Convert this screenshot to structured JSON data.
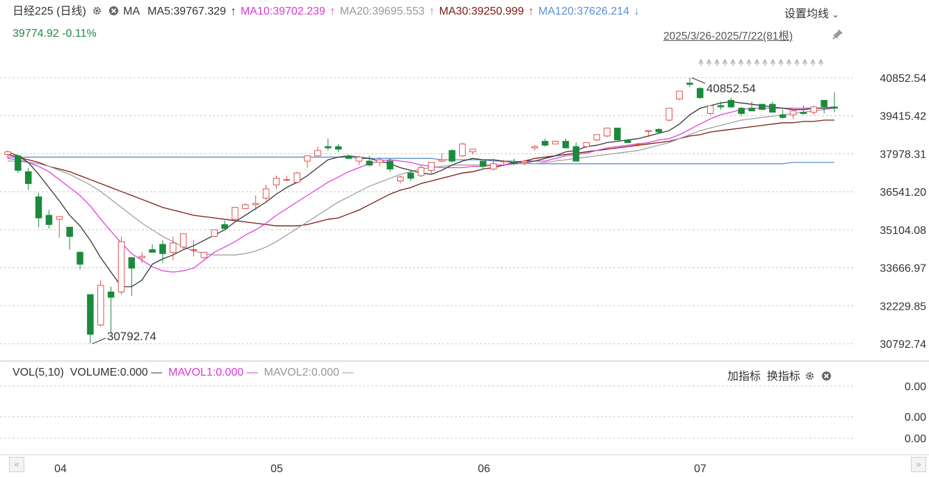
{
  "header": {
    "title": "日经225 (日线)",
    "ma_label": "MA",
    "ma5": "MA5:39767.329",
    "ma10": "MA10:39702.239",
    "ma20": "MA20:39695.553",
    "ma30": "MA30:39250.999",
    "ma120": "MA120:37626.214",
    "arrow_up": "↑",
    "arrow_down": "↓",
    "price_change": "39774.92 -0.11%",
    "settings_label": "设置均线",
    "date_range": "2025/3/26-2025/7/22(81根)"
  },
  "colors": {
    "up": "#e0504a",
    "down": "#1a8a3c",
    "ma5": "#333333",
    "ma10": "#e040e0",
    "ma20": "#a0a0a0",
    "ma30": "#7a1a12",
    "ma120": "#5b8fd6"
  },
  "chart_data": {
    "type": "candlestick",
    "y_ticks": [
      "40852.54",
      "39415.42",
      "37978.31",
      "36541.20",
      "35104.08",
      "33666.97",
      "32229.85",
      "30792.74"
    ],
    "ylim": [
      30792.74,
      40852.54
    ],
    "x_ticks": [
      "04",
      "05",
      "06",
      "07"
    ],
    "annotations": {
      "high": "40852.54",
      "low": "30792.74"
    },
    "candles": [
      [
        37950,
        38100,
        37800,
        38050
      ],
      [
        37900,
        37950,
        37250,
        37350
      ],
      [
        37300,
        37450,
        36600,
        36850
      ],
      [
        36350,
        36500,
        35200,
        35550
      ],
      [
        35650,
        35850,
        35150,
        35300
      ],
      [
        35500,
        35600,
        34800,
        35600
      ],
      [
        35200,
        35200,
        34350,
        34850
      ],
      [
        34250,
        34300,
        33600,
        33800
      ],
      [
        32650,
        32650,
        30800,
        31150
      ],
      [
        31500,
        33200,
        31450,
        33000
      ],
      [
        32750,
        32950,
        31200,
        32550
      ],
      [
        32750,
        34850,
        32650,
        34650
      ],
      [
        34050,
        34050,
        32600,
        33650
      ],
      [
        34050,
        34250,
        33850,
        34100
      ],
      [
        34350,
        34550,
        34250,
        34250
      ],
      [
        34550,
        34700,
        33850,
        34200
      ],
      [
        34250,
        34850,
        33950,
        34600
      ],
      [
        34450,
        34950,
        34350,
        34950
      ],
      [
        34350,
        34700,
        34100,
        34350
      ],
      [
        34050,
        34250,
        34000,
        34250
      ],
      [
        34850,
        35050,
        34850,
        35100
      ],
      [
        35300,
        35450,
        35150,
        35150
      ],
      [
        35500,
        35950,
        35450,
        35950
      ],
      [
        35900,
        36100,
        35900,
        36050
      ],
      [
        36050,
        36400,
        35850,
        36100
      ],
      [
        36300,
        36800,
        36200,
        36650
      ],
      [
        36800,
        37150,
        36650,
        37050
      ],
      [
        37000,
        37150,
        36950,
        37000
      ],
      [
        36900,
        37300,
        36850,
        37250
      ],
      [
        37700,
        37850,
        37450,
        37900
      ],
      [
        37900,
        38250,
        37900,
        38100
      ],
      [
        38250,
        38550,
        38100,
        38200
      ],
      [
        38250,
        38350,
        38050,
        38150
      ],
      [
        37900,
        37950,
        37800,
        37800
      ],
      [
        37700,
        37900,
        37550,
        37850
      ],
      [
        37700,
        37900,
        37500,
        37550
      ],
      [
        37650,
        37850,
        37500,
        37750
      ],
      [
        37700,
        37800,
        37300,
        37400
      ],
      [
        36950,
        37150,
        36850,
        37100
      ],
      [
        37250,
        37350,
        36950,
        37050
      ],
      [
        37150,
        37550,
        37100,
        37450
      ],
      [
        37350,
        37650,
        37200,
        37650
      ],
      [
        37700,
        38000,
        37650,
        37750
      ],
      [
        38100,
        38150,
        37650,
        37700
      ],
      [
        37900,
        38400,
        37850,
        38350
      ],
      [
        38050,
        38150,
        37950,
        38150
      ],
      [
        37700,
        37700,
        37400,
        37500
      ],
      [
        37400,
        37800,
        37350,
        37600
      ],
      [
        37700,
        37750,
        37500,
        37700
      ],
      [
        37650,
        37800,
        37550,
        37600
      ],
      [
        37650,
        37750,
        37550,
        37700
      ],
      [
        38200,
        38300,
        38100,
        38250
      ],
      [
        38450,
        38550,
        38250,
        38300
      ],
      [
        38350,
        38450,
        38350,
        38450
      ],
      [
        38450,
        38550,
        38200,
        38200
      ],
      [
        38250,
        38400,
        37800,
        37700
      ],
      [
        38250,
        38400,
        38200,
        38400
      ],
      [
        38500,
        38650,
        38450,
        38700
      ],
      [
        38650,
        38950,
        38600,
        38950
      ],
      [
        38950,
        38950,
        38500,
        38500
      ],
      [
        38500,
        38550,
        38400,
        38400
      ],
      [
        38350,
        38400,
        38250,
        38350
      ],
      [
        38850,
        38850,
        38600,
        38850
      ],
      [
        38900,
        38950,
        38750,
        38800
      ],
      [
        39250,
        39700,
        39200,
        39700
      ],
      [
        40050,
        40250,
        40000,
        40350
      ],
      [
        40650,
        40850,
        40500,
        40600
      ],
      [
        40450,
        40500,
        40050,
        40100
      ],
      [
        39500,
        39800,
        39450,
        39800
      ],
      [
        39800,
        39950,
        39650,
        39750
      ],
      [
        40000,
        40100,
        39700,
        39750
      ],
      [
        39700,
        39750,
        39400,
        39500
      ],
      [
        39700,
        39950,
        39600,
        39600
      ],
      [
        39850,
        39850,
        39650,
        39650
      ],
      [
        39850,
        39950,
        39650,
        39550
      ],
      [
        39450,
        39650,
        39300,
        39350
      ],
      [
        39450,
        39650,
        39300,
        39600
      ],
      [
        39550,
        39800,
        39450,
        39500
      ],
      [
        39550,
        39800,
        39450,
        39750
      ],
      [
        40000,
        40000,
        39500,
        39750
      ],
      [
        39750,
        40300,
        39550,
        39700
      ]
    ],
    "ma5": [
      38050,
      37900,
      37650,
      37200,
      36700,
      36200,
      35650,
      35250,
      34700,
      34050,
      33500,
      32950,
      32950,
      33200,
      33800,
      34000,
      34150,
      34350,
      34500,
      34700,
      34900,
      35100,
      35400,
      35650,
      35900,
      36150,
      36450,
      36700,
      36900,
      37150,
      37450,
      37750,
      37850,
      37900,
      37850,
      37800,
      37700,
      37600,
      37450,
      37350,
      37250,
      37200,
      37350,
      37550,
      37700,
      37800,
      37750,
      37750,
      37700,
      37650,
      37700,
      37700,
      37800,
      37900,
      38050,
      38100,
      38250,
      38300,
      38400,
      38450,
      38500,
      38550,
      38650,
      38750,
      38850,
      39100,
      39450,
      39700,
      39800,
      39900,
      39950,
      39900,
      39850,
      39800,
      39750,
      39700,
      39650,
      39650,
      39700,
      39700,
      39750
    ],
    "ma10": [
      37800,
      37750,
      37650,
      37500,
      37300,
      37000,
      36700,
      36400,
      36000,
      35500,
      35050,
      34600,
      34200,
      33950,
      33700,
      33550,
      33500,
      33550,
      33650,
      33950,
      34250,
      34450,
      34650,
      34900,
      35100,
      35350,
      35650,
      35900,
      36150,
      36400,
      36650,
      36900,
      37100,
      37300,
      37450,
      37600,
      37700,
      37750,
      37700,
      37650,
      37550,
      37500,
      37450,
      37450,
      37450,
      37500,
      37500,
      37550,
      37550,
      37600,
      37650,
      37700,
      37700,
      37800,
      37900,
      37950,
      38000,
      38100,
      38200,
      38250,
      38300,
      38350,
      38400,
      38500,
      38550,
      38700,
      38900,
      39100,
      39300,
      39450,
      39550,
      39650,
      39700,
      39700,
      39700,
      39700,
      39700,
      39700,
      39700,
      39700,
      39700
    ],
    "ma20": [
      37700,
      37700,
      37650,
      37600,
      37500,
      37350,
      37200,
      37000,
      36800,
      36550,
      36250,
      35950,
      35650,
      35350,
      35100,
      34850,
      34650,
      34450,
      34300,
      34200,
      34150,
      34150,
      34150,
      34200,
      34300,
      34450,
      34650,
      34900,
      35150,
      35400,
      35650,
      35900,
      36150,
      36350,
      36550,
      36750,
      36900,
      37050,
      37200,
      37300,
      37400,
      37450,
      37500,
      37550,
      37550,
      37550,
      37550,
      37550,
      37550,
      37600,
      37600,
      37600,
      37650,
      37700,
      37750,
      37800,
      37850,
      37900,
      37950,
      38000,
      38050,
      38100,
      38200,
      38300,
      38400,
      38550,
      38700,
      38850,
      38950,
      39050,
      39150,
      39250,
      39300,
      39350,
      39400,
      39450,
      39500,
      39550,
      39600,
      39650,
      39700
    ],
    "ma30": [
      37950,
      37850,
      37750,
      37650,
      37500,
      37400,
      37300,
      37150,
      37000,
      36850,
      36700,
      36550,
      36400,
      36250,
      36100,
      35950,
      35850,
      35750,
      35650,
      35600,
      35550,
      35500,
      35450,
      35400,
      35350,
      35300,
      35250,
      35250,
      35250,
      35300,
      35400,
      35500,
      35550,
      35700,
      35850,
      36050,
      36250,
      36450,
      36600,
      36700,
      36850,
      36950,
      37050,
      37150,
      37250,
      37300,
      37400,
      37450,
      37550,
      37650,
      37700,
      37800,
      37850,
      37900,
      37950,
      38000,
      38050,
      38100,
      38150,
      38200,
      38250,
      38300,
      38350,
      38400,
      38450,
      38550,
      38650,
      38700,
      38800,
      38850,
      38900,
      38950,
      39000,
      39050,
      39100,
      39150,
      39150,
      39200,
      39200,
      39250,
      39250
    ],
    "ma120": [
      37850,
      37850,
      37850,
      37850,
      37850,
      37850,
      37850,
      37850,
      37850,
      37850,
      37850,
      37850,
      37850,
      37850,
      37850,
      37850,
      37850,
      37850,
      37850,
      37850,
      37850,
      37850,
      37850,
      37850,
      37850,
      37850,
      37850,
      37850,
      37850,
      37850,
      37850,
      37850,
      37850,
      37850,
      37800,
      37800,
      37800,
      37800,
      37800,
      37800,
      37800,
      37800,
      37750,
      37750,
      37750,
      37750,
      37750,
      37700,
      37700,
      37700,
      37650,
      37600,
      37600,
      37600,
      37600,
      37600,
      37600,
      37600,
      37600,
      37600,
      37600,
      37600,
      37600,
      37600,
      37600,
      37600,
      37600,
      37600,
      37600,
      37600,
      37600,
      37600,
      37600,
      37600,
      37600,
      37600,
      37650,
      37650,
      37650,
      37650,
      37650
    ],
    "volume": {
      "label": "VOL(5,10)",
      "volume": "VOLUME:0.000",
      "mavol1": "MAVOL1:0.000",
      "mavol2": "MAVOL2:0.000",
      "y_ticks": [
        "0.00",
        "0.00",
        "0.00"
      ]
    }
  },
  "toolbar": {
    "add_indicator": "加指标",
    "switch_indicator": "换指标",
    "dash": "—"
  },
  "nav": {
    "left": "«",
    "right": "»"
  }
}
